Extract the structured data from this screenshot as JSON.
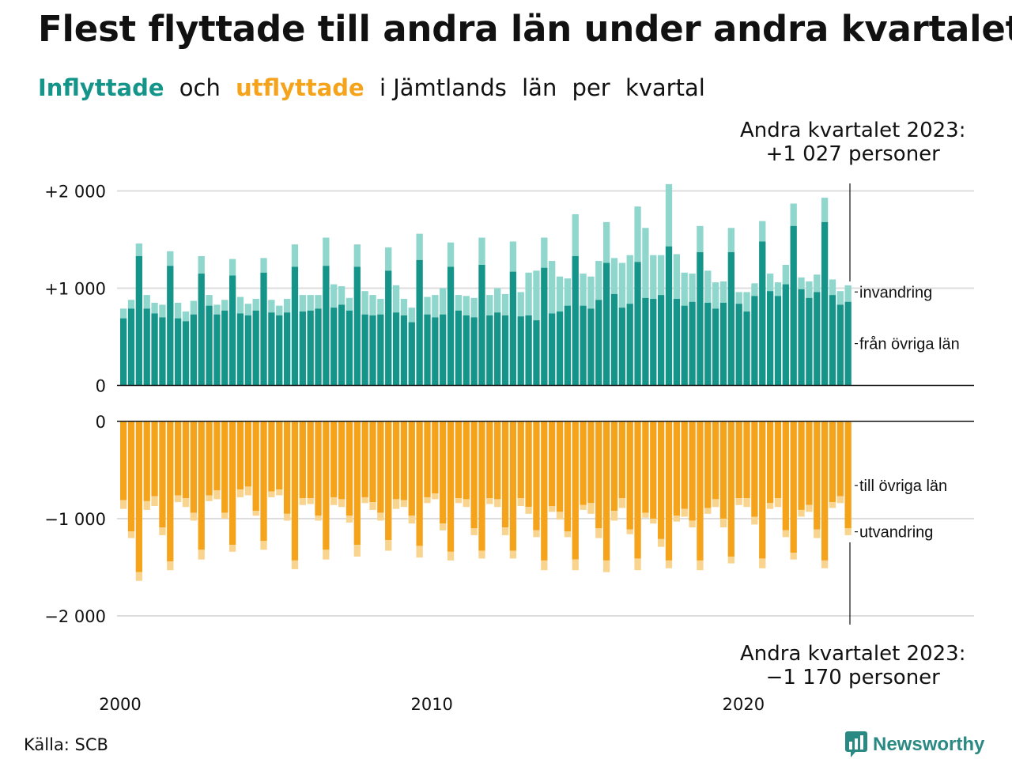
{
  "title": "Flest flyttade till andra län under andra kvartalet",
  "subtitle": {
    "part1": "Inflyttade",
    "part2": "och",
    "part3": "utflyttade",
    "part4": "i Jämtlands",
    "part5": "län",
    "part6": "per",
    "part7": "kvartal"
  },
  "annotation_top": {
    "line1": "Andra kvartalet 2023:",
    "line2": "+1 027 personer"
  },
  "annotation_bottom": {
    "line1": "Andra kvartalet 2023:",
    "line2": "−1 170 personer"
  },
  "source": "Källa: SCB",
  "brand": "Newsworthy",
  "colors": {
    "in_other": "#15958a",
    "in_immig": "#8fd6cc",
    "out_other": "#f5a31a",
    "out_emig": "#f9d48f",
    "grid": "#dddddd"
  },
  "chart_data": {
    "type": "bar",
    "title": "Flest flyttade till andra län under andra kvartalet",
    "x_unit": "quarter",
    "start": "2000Q1",
    "end": "2023Q2",
    "x_ticks": [
      "2000",
      "2010",
      "2020"
    ],
    "y_ticks_top": [
      "+2 000",
      "+1 000",
      "0"
    ],
    "y_ticks_bottom": [
      "0",
      "−1 000",
      "−2 000"
    ],
    "ylim_top": [
      0,
      2100
    ],
    "ylim_bottom": [
      -2100,
      0
    ],
    "legend": {
      "in_total": "invandring",
      "in_other": "från övriga län",
      "out_other": "till övriga län",
      "out_total": "utvandring"
    },
    "in_other": [
      690,
      790,
      1330,
      790,
      740,
      700,
      1230,
      690,
      660,
      730,
      1150,
      820,
      730,
      770,
      1130,
      740,
      720,
      770,
      1160,
      750,
      720,
      750,
      1220,
      760,
      770,
      790,
      1230,
      800,
      830,
      770,
      1220,
      730,
      720,
      730,
      1180,
      750,
      720,
      650,
      1290,
      730,
      700,
      730,
      1220,
      770,
      720,
      700,
      1240,
      720,
      750,
      720,
      1170,
      710,
      720,
      670,
      1210,
      740,
      760,
      820,
      1330,
      820,
      790,
      880,
      1260,
      940,
      800,
      840,
      1270,
      900,
      890,
      930,
      1430,
      890,
      820,
      860,
      1370,
      850,
      790,
      850,
      1370,
      840,
      760,
      920,
      1480,
      970,
      920,
      1040,
      1640,
      990,
      900,
      960,
      1680,
      930,
      830,
      860
    ],
    "in_total": [
      790,
      880,
      1460,
      930,
      850,
      830,
      1380,
      850,
      760,
      870,
      1330,
      930,
      830,
      880,
      1300,
      910,
      840,
      890,
      1310,
      880,
      820,
      890,
      1450,
      930,
      930,
      930,
      1520,
      1040,
      1020,
      900,
      1450,
      970,
      930,
      890,
      1420,
      1030,
      890,
      800,
      1560,
      910,
      930,
      1000,
      1470,
      930,
      920,
      900,
      1520,
      930,
      1000,
      940,
      1480,
      960,
      1160,
      1180,
      1520,
      1280,
      1120,
      1100,
      1760,
      1150,
      1120,
      1280,
      1680,
      1310,
      1260,
      1340,
      1840,
      1620,
      1340,
      1340,
      2070,
      1350,
      1160,
      1150,
      1640,
      1180,
      1060,
      1070,
      1620,
      960,
      960,
      1050,
      1690,
      1150,
      1060,
      1240,
      1870,
      1110,
      1070,
      1140,
      1930,
      1090,
      970,
      1030
    ],
    "out_other": [
      810,
      1130,
      1550,
      820,
      770,
      1090,
      1440,
      760,
      790,
      940,
      1320,
      760,
      710,
      940,
      1270,
      700,
      670,
      920,
      1230,
      720,
      700,
      950,
      1430,
      790,
      790,
      970,
      1320,
      780,
      800,
      970,
      1270,
      780,
      830,
      940,
      1220,
      800,
      810,
      970,
      1280,
      780,
      740,
      1050,
      1340,
      790,
      800,
      1100,
      1330,
      790,
      800,
      1090,
      1330,
      790,
      880,
      1120,
      1430,
      870,
      930,
      1130,
      1420,
      860,
      840,
      1100,
      1430,
      920,
      790,
      1110,
      1410,
      940,
      1000,
      1210,
      1430,
      970,
      900,
      1020,
      1430,
      890,
      800,
      1000,
      1390,
      790,
      790,
      980,
      1410,
      840,
      790,
      1120,
      1350,
      910,
      860,
      1110,
      1430,
      830,
      770,
      1100
    ],
    "out_total": [
      900,
      1200,
      1640,
      910,
      870,
      1170,
      1530,
      830,
      880,
      1020,
      1420,
      820,
      800,
      1000,
      1340,
      780,
      760,
      970,
      1320,
      780,
      760,
      1020,
      1520,
      860,
      850,
      1020,
      1420,
      860,
      880,
      1040,
      1390,
      840,
      910,
      1020,
      1330,
      900,
      880,
      1050,
      1400,
      840,
      800,
      1120,
      1430,
      840,
      880,
      1170,
      1410,
      850,
      880,
      1170,
      1410,
      870,
      950,
      1190,
      1530,
      930,
      1010,
      1190,
      1530,
      910,
      950,
      1200,
      1550,
      1020,
      890,
      1160,
      1530,
      990,
      1050,
      1290,
      1510,
      1030,
      980,
      1090,
      1530,
      950,
      880,
      1090,
      1460,
      860,
      880,
      1060,
      1510,
      900,
      880,
      1190,
      1420,
      980,
      930,
      1200,
      1510,
      890,
      840,
      1170
    ]
  }
}
